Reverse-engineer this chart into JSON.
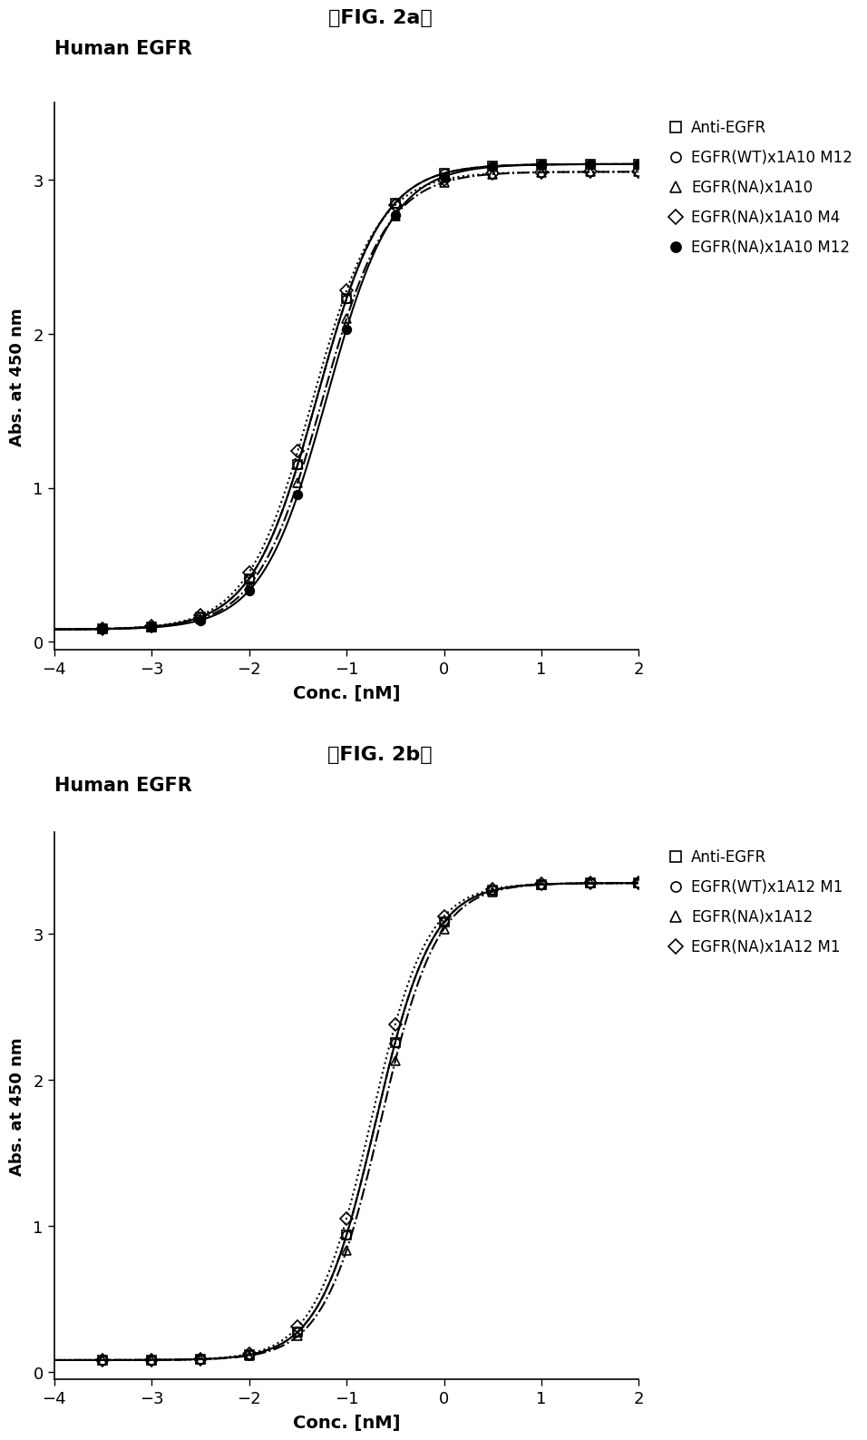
{
  "fig2a": {
    "title_fig": "【FIG. 2a】",
    "title_plot": "Human EGFR",
    "xlabel": "Conc. [nM]",
    "ylabel": "Abs. at 450 nm",
    "xlim": [
      -4,
      2
    ],
    "ylim": [
      -0.05,
      3.5
    ],
    "xticks": [
      -4,
      -3,
      -2,
      -1,
      0,
      1,
      2
    ],
    "yticks": [
      0,
      1,
      2,
      3
    ],
    "series": [
      {
        "label": "Anti-EGFR",
        "marker": "s",
        "fillstyle": "none",
        "color": "#000000",
        "linestyle": "-",
        "ec50": -1.3,
        "bottom": 0.08,
        "top": 3.1,
        "slope": 1.3
      },
      {
        "label": "EGFR(WT)x1A10 M12",
        "marker": "o",
        "fillstyle": "none",
        "color": "#000000",
        "linestyle": "--",
        "ec50": -1.3,
        "bottom": 0.08,
        "top": 3.1,
        "slope": 1.3
      },
      {
        "label": "EGFR(NA)x1A10",
        "marker": "^",
        "fillstyle": "none",
        "color": "#000000",
        "linestyle": "-.",
        "ec50": -1.25,
        "bottom": 0.08,
        "top": 3.05,
        "slope": 1.3
      },
      {
        "label": "EGFR(NA)x1A10 M4",
        "marker": "D",
        "fillstyle": "none",
        "color": "#000000",
        "linestyle": ":",
        "ec50": -1.35,
        "bottom": 0.08,
        "top": 3.05,
        "slope": 1.3
      },
      {
        "label": "EGFR(NA)x1A10 M12",
        "marker": "o",
        "fillstyle": "full",
        "color": "#000000",
        "linestyle": "-",
        "ec50": -1.2,
        "bottom": 0.08,
        "top": 3.1,
        "slope": 1.3
      }
    ],
    "x_data": [
      -3.5,
      -3.0,
      -2.5,
      -2.0,
      -1.5,
      -1.0,
      -0.5,
      0.0,
      0.5,
      1.0,
      1.5,
      2.0
    ]
  },
  "fig2b": {
    "title_fig": "【FIG. 2b】",
    "title_plot": "Human EGFR",
    "xlabel": "Conc. [nM]",
    "ylabel": "Abs. at 450 nm",
    "xlim": [
      -4,
      2
    ],
    "ylim": [
      -0.05,
      3.7
    ],
    "xticks": [
      -4,
      -3,
      -2,
      -1,
      0,
      1,
      2
    ],
    "yticks": [
      0,
      1,
      2,
      3
    ],
    "series": [
      {
        "label": "Anti-EGFR",
        "marker": "s",
        "fillstyle": "none",
        "color": "#000000",
        "linestyle": "-",
        "ec50": -0.7,
        "bottom": 0.08,
        "top": 3.35,
        "slope": 1.5
      },
      {
        "label": "EGFR(WT)x1A12 M1",
        "marker": "o",
        "fillstyle": "none",
        "color": "#000000",
        "linestyle": "--",
        "ec50": -0.7,
        "bottom": 0.08,
        "top": 3.35,
        "slope": 1.5
      },
      {
        "label": "EGFR(NA)x1A12",
        "marker": "^",
        "fillstyle": "none",
        "color": "#000000",
        "linestyle": "-.",
        "ec50": -0.65,
        "bottom": 0.08,
        "top": 3.35,
        "slope": 1.5
      },
      {
        "label": "EGFR(NA)x1A12 M1",
        "marker": "D",
        "fillstyle": "none",
        "color": "#000000",
        "linestyle": ":",
        "ec50": -0.75,
        "bottom": 0.08,
        "top": 3.35,
        "slope": 1.5
      }
    ],
    "x_data": [
      -3.5,
      -3.0,
      -2.5,
      -2.0,
      -1.5,
      -1.0,
      -0.5,
      0.0,
      0.5,
      1.0,
      1.5,
      2.0
    ]
  },
  "background_color": "#ffffff",
  "text_color": "#000000",
  "markersize": 7,
  "linewidth": 1.5
}
